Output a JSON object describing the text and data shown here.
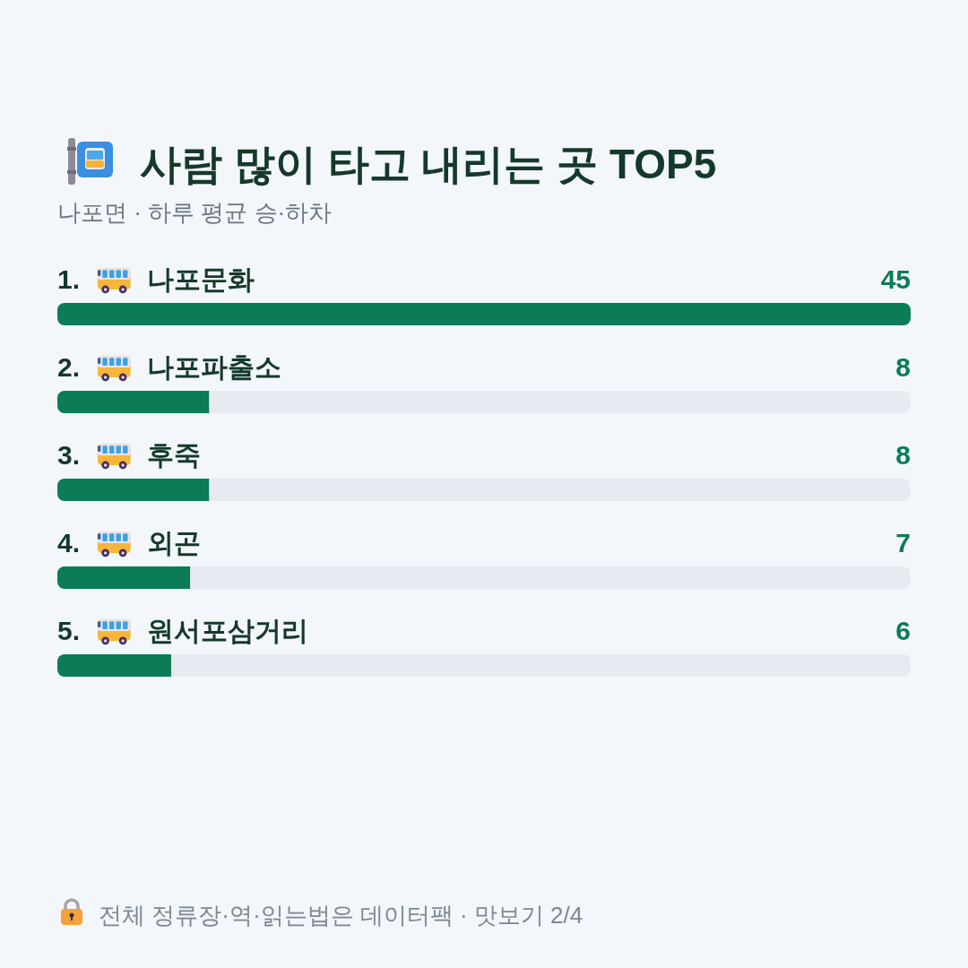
{
  "chart_data": {
    "type": "bar",
    "orientation": "horizontal",
    "title": "사람 많이 타고 내리는 곳 TOP5",
    "subtitle": "나포면 · 하루 평균 승·하차",
    "categories": [
      "1. 나포문화",
      "2. 나포파출소",
      "3. 후죽",
      "4. 외곤",
      "5. 원서포삼거리"
    ],
    "values": [
      45,
      8,
      8,
      7,
      6
    ],
    "color": "#0b7c55",
    "data_labels": true,
    "annotations": [
      "전체 정류장·역·읽는법은 데이터팩 · 맛보기 2/4"
    ]
  }
}
